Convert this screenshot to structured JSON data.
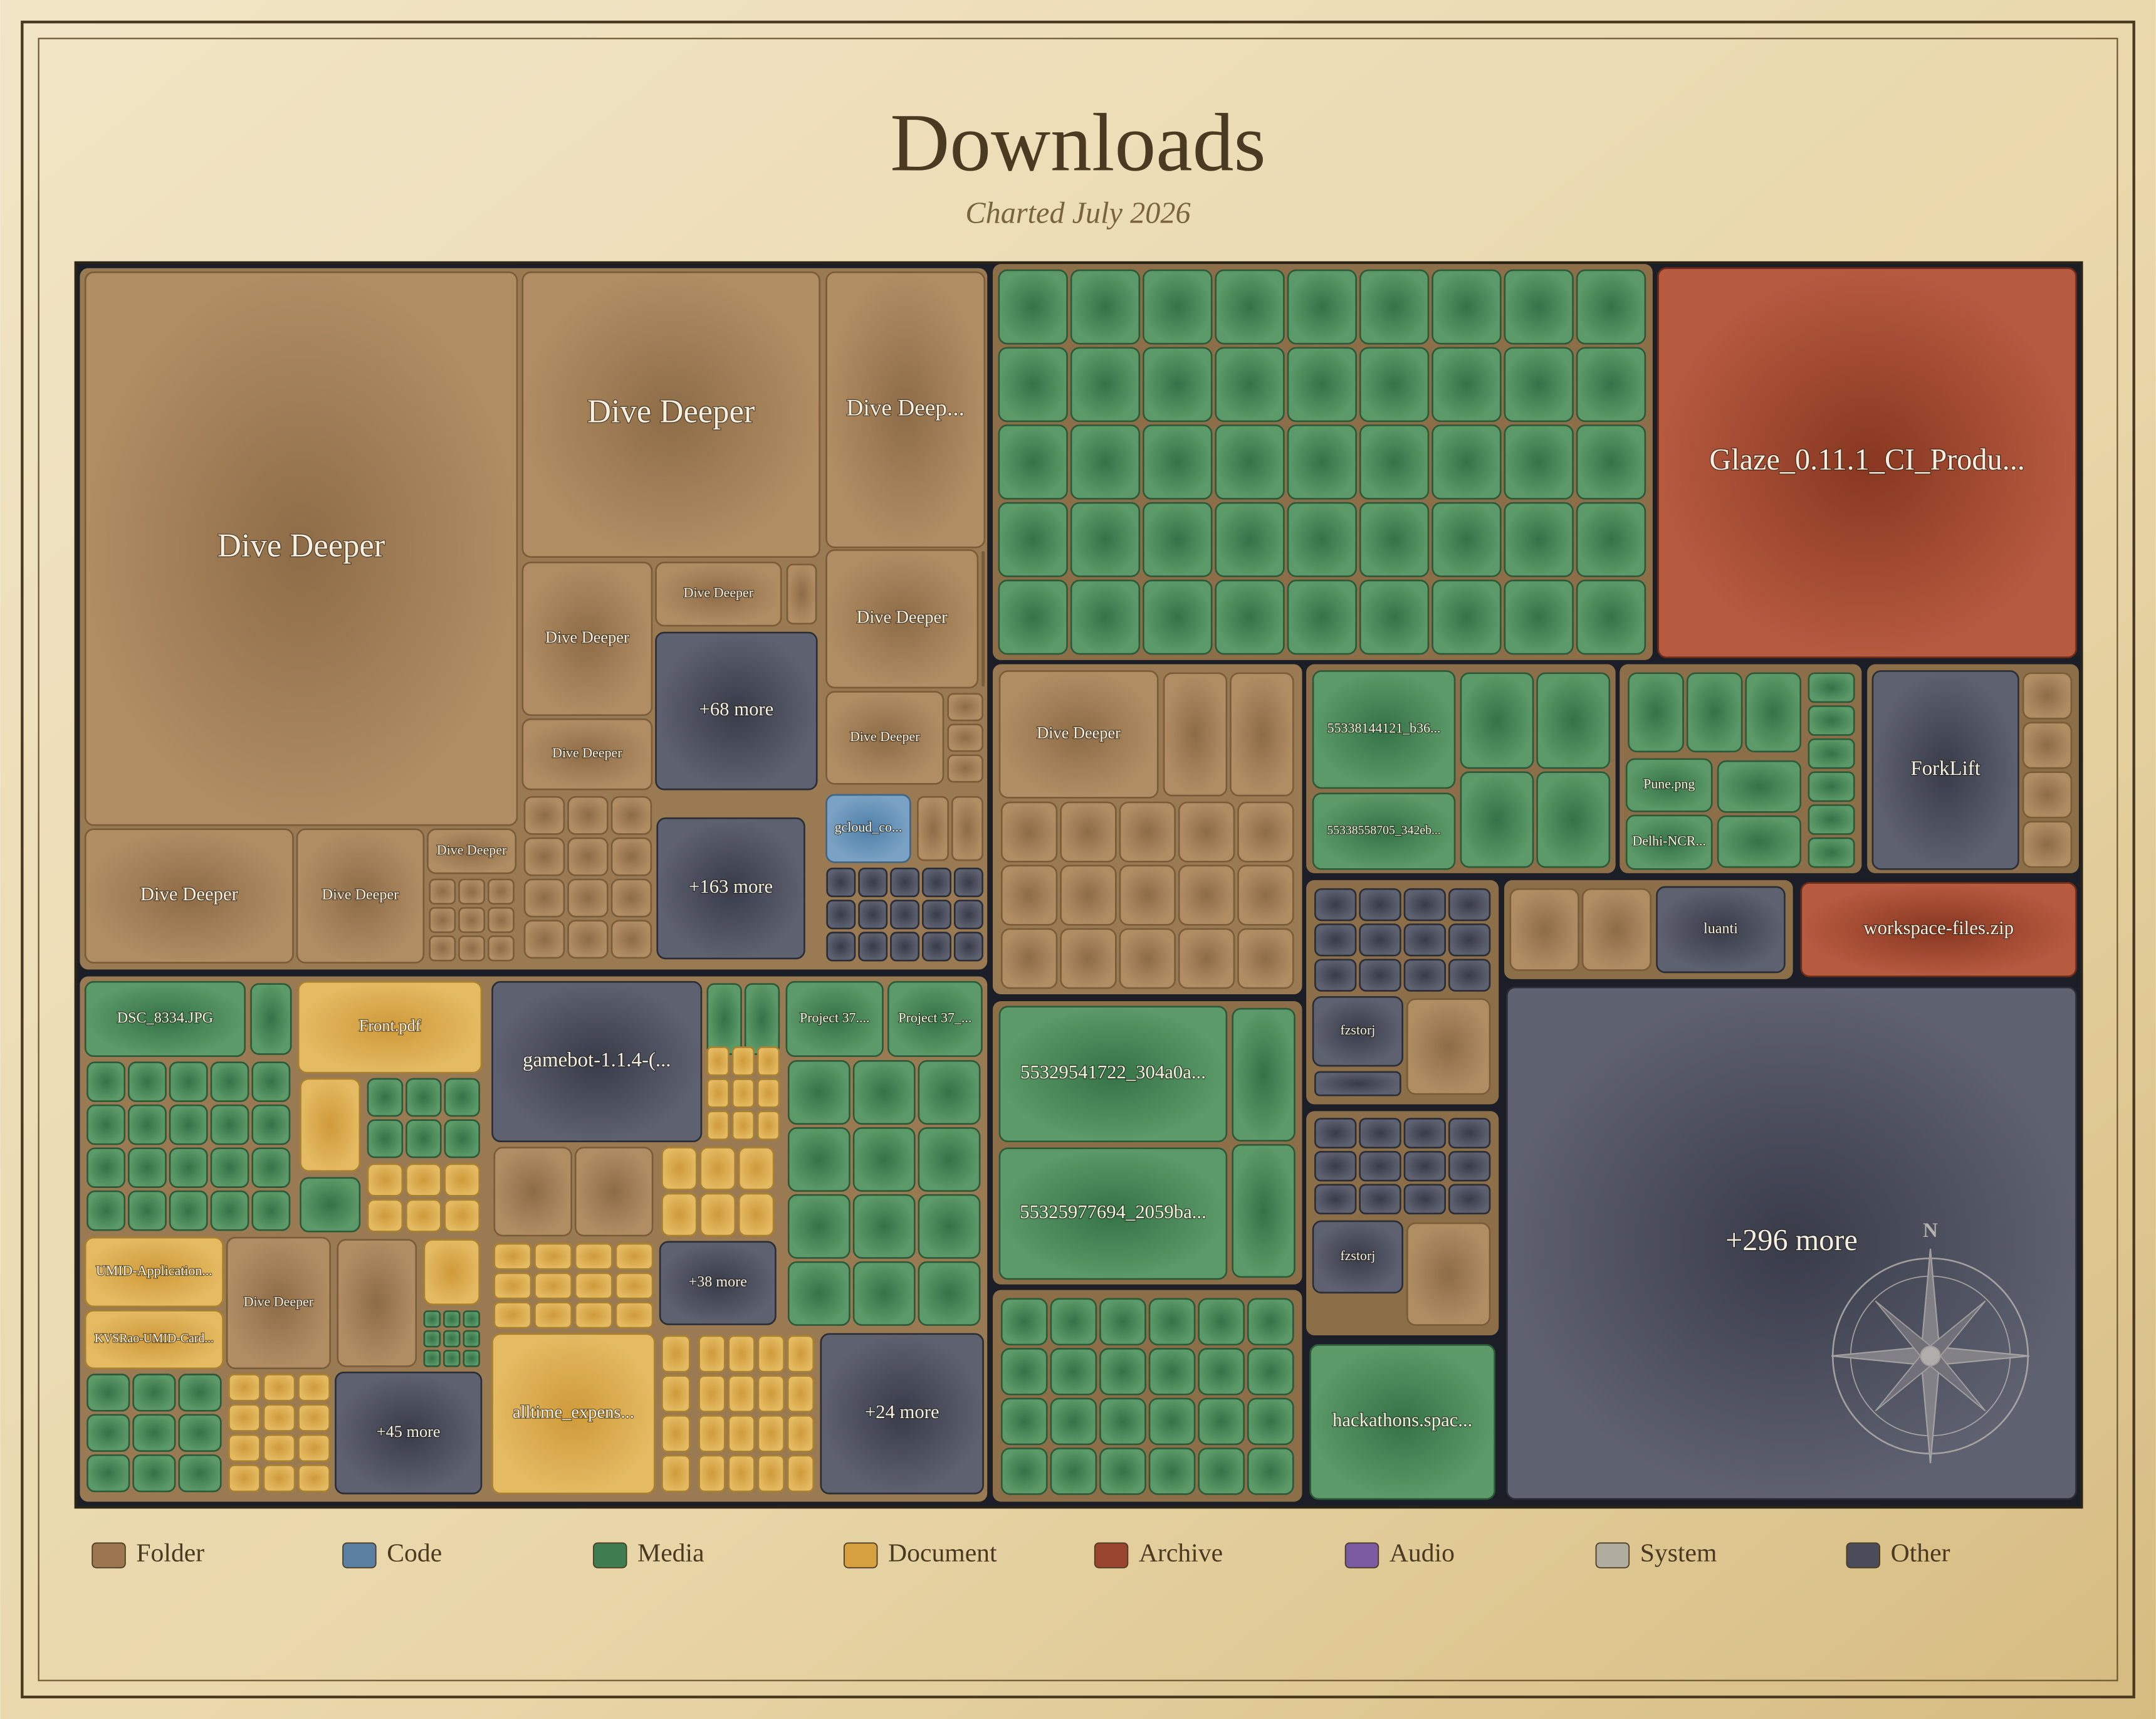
{
  "header": {
    "title": "Downloads",
    "subtitle": "Charted July 2026"
  },
  "tiles": [
    {
      "label": "Dive Deeper"
    },
    {
      "label": "Dive Deeper"
    },
    {
      "label": "Dive Deep..."
    },
    {
      "label": "Dive Deeper"
    },
    {
      "label": "Dive Deeper"
    },
    {
      "label": "+68 more"
    },
    {
      "label": "Dive Deeper"
    },
    {
      "label": "Dive Deeper"
    },
    {
      "label": "Dive Deeper"
    },
    {
      "label": "Dive Deeper"
    },
    {
      "label": "Dive Deeper"
    },
    {
      "label": "Dive Deeper"
    },
    {
      "label": "+163 more"
    },
    {
      "label": "gcloud_co..."
    },
    {
      "label": "Glaze_0.11.1_CI_Produ..."
    },
    {
      "label": "Dive Deeper"
    },
    {
      "label": "55338144121_b36..."
    },
    {
      "label": "55338558705_342eb..."
    },
    {
      "label": "Pune.png"
    },
    {
      "label": "Delhi-NCR..."
    },
    {
      "label": "ForkLift"
    },
    {
      "label": "fzstorj"
    },
    {
      "label": "luanti"
    },
    {
      "label": "workspace-files.zip"
    },
    {
      "label": "+296 more"
    },
    {
      "label": "fzstorj"
    },
    {
      "label": "hackathons.spac..."
    },
    {
      "label": "55329541722_304a0a..."
    },
    {
      "label": "55325977694_2059ba..."
    },
    {
      "label": "DSC_8334.JPG"
    },
    {
      "label": "Front.pdf"
    },
    {
      "label": "gamebot-1.1.4-(..."
    },
    {
      "label": "Project 37...."
    },
    {
      "label": "Project 37_..."
    },
    {
      "label": "UMID-Application..."
    },
    {
      "label": "KVSRao-UMID-Card..."
    },
    {
      "label": "Dive Deeper"
    },
    {
      "label": "+45 more"
    },
    {
      "label": "alltime_expens..."
    },
    {
      "label": "+38 more"
    },
    {
      "label": "+24 more"
    }
  ],
  "legend": [
    "Folder",
    "Code",
    "Media",
    "Document",
    "Archive",
    "Audio",
    "System",
    "Other"
  ],
  "compass": "N"
}
